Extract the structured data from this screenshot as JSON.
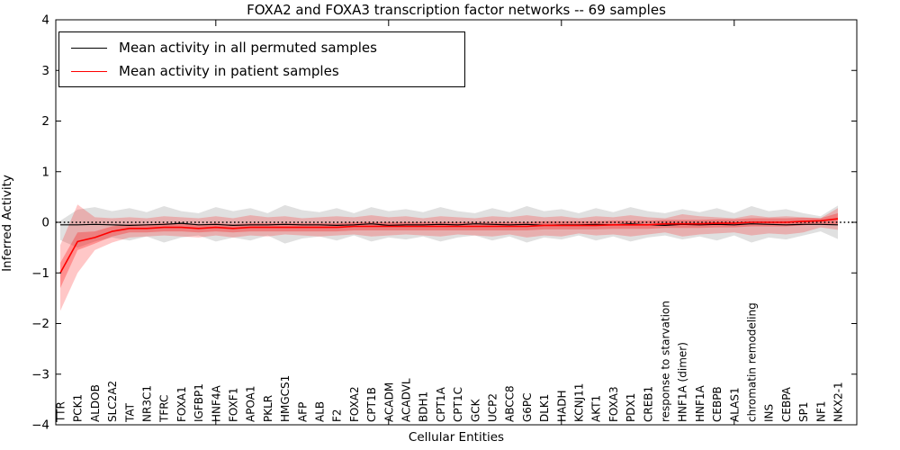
{
  "figure": {
    "title": "FOXA2 and FOXA3 transcription factor networks -- 69 samples",
    "xlabel": "Cellular Entities",
    "ylabel": "Inferred Activity"
  },
  "legend": {
    "items": [
      {
        "label": "Mean activity in all permuted samples",
        "color": "#000000"
      },
      {
        "label": "Mean activity in patient samples",
        "color": "#ff0000"
      }
    ]
  },
  "chart_data": {
    "type": "line",
    "title": "FOXA2 and FOXA3 transcription factor networks -- 69 samples",
    "xlabel": "Cellular Entities",
    "ylabel": "Inferred Activity",
    "ylim": [
      -4,
      4
    ],
    "yticks": [
      4,
      3,
      2,
      1,
      0,
      -1,
      -2,
      -3,
      -4
    ],
    "grid": false,
    "legend_position": "upper left",
    "zero_line": {
      "style": "dotted",
      "color": "#000000",
      "y": 0
    },
    "xtick_marks_top_indices": [
      9,
      19,
      29,
      39
    ],
    "categories": [
      "TTR",
      "PCK1",
      "ALDOB",
      "SLC2A2",
      "TAT",
      "NR3C1",
      "TFRC",
      "FOXA1",
      "IGFBP1",
      "HNF4A",
      "FOXF1",
      "APOA1",
      "PKLR",
      "HMGCS1",
      "AFP",
      "ALB",
      "F2",
      "FOXA2",
      "CPT1B",
      "ACADM",
      "ACADVL",
      "BDH1",
      "CPT1A",
      "CPT1C",
      "GCK",
      "UCP2",
      "ABCC8",
      "G6PC",
      "DLK1",
      "HADH",
      "KCNJ11",
      "AKT1",
      "FOXA3",
      "PDX1",
      "CREB1",
      "response to starvation",
      "HNF1A (dimer)",
      "HNF1A",
      "CEBPB",
      "ALAS1",
      "chromatin remodeling",
      "INS",
      "CEBPA",
      "SP1",
      "NF1",
      "NKX2-1"
    ],
    "series": [
      {
        "name": "Mean activity in all permuted samples",
        "color": "#000000",
        "width": 1.2,
        "values": [
          -0.05,
          -0.05,
          -0.04,
          -0.05,
          -0.06,
          -0.05,
          -0.04,
          -0.02,
          -0.05,
          -0.04,
          -0.06,
          -0.05,
          -0.05,
          -0.04,
          -0.05,
          -0.05,
          -0.06,
          -0.05,
          -0.03,
          -0.06,
          -0.05,
          -0.05,
          -0.04,
          -0.05,
          -0.03,
          -0.04,
          -0.05,
          -0.04,
          -0.06,
          -0.05,
          -0.05,
          -0.04,
          -0.05,
          -0.03,
          -0.05,
          -0.06,
          -0.04,
          -0.05,
          -0.04,
          -0.05,
          -0.03,
          -0.04,
          -0.05,
          -0.04,
          -0.04,
          -0.05
        ]
      },
      {
        "name": "Mean activity in patient samples",
        "color": "#ff0000",
        "width": 1.6,
        "values": [
          -1.0,
          -0.38,
          -0.3,
          -0.18,
          -0.12,
          -0.12,
          -0.1,
          -0.1,
          -0.12,
          -0.1,
          -0.12,
          -0.1,
          -0.1,
          -0.1,
          -0.1,
          -0.1,
          -0.1,
          -0.08,
          -0.08,
          -0.08,
          -0.08,
          -0.08,
          -0.08,
          -0.08,
          -0.08,
          -0.08,
          -0.08,
          -0.08,
          -0.06,
          -0.06,
          -0.06,
          -0.06,
          -0.05,
          -0.05,
          -0.05,
          -0.03,
          -0.03,
          -0.03,
          -0.02,
          -0.02,
          0.0,
          0.0,
          0.0,
          0.02,
          0.03,
          0.07
        ]
      }
    ],
    "bands": [
      {
        "name": "permuted-samples-range",
        "color": "#000000",
        "opacity": 0.12,
        "upper": [
          0.03,
          0.25,
          0.3,
          0.22,
          0.28,
          0.2,
          0.32,
          0.22,
          0.18,
          0.3,
          0.22,
          0.28,
          0.18,
          0.34,
          0.24,
          0.2,
          0.28,
          0.18,
          0.3,
          0.22,
          0.26,
          0.2,
          0.3,
          0.22,
          0.18,
          0.28,
          0.2,
          0.32,
          0.22,
          0.26,
          0.18,
          0.28,
          0.2,
          0.3,
          0.22,
          0.18,
          0.26,
          0.2,
          0.28,
          0.18,
          0.32,
          0.22,
          0.26,
          0.18,
          0.12,
          0.33
        ],
        "lower": [
          -0.35,
          -0.5,
          -0.38,
          -0.3,
          -0.36,
          -0.28,
          -0.4,
          -0.3,
          -0.26,
          -0.38,
          -0.3,
          -0.36,
          -0.26,
          -0.42,
          -0.32,
          -0.28,
          -0.36,
          -0.26,
          -0.38,
          -0.3,
          -0.34,
          -0.28,
          -0.38,
          -0.3,
          -0.26,
          -0.36,
          -0.28,
          -0.4,
          -0.3,
          -0.34,
          -0.26,
          -0.36,
          -0.28,
          -0.38,
          -0.3,
          -0.26,
          -0.34,
          -0.28,
          -0.36,
          -0.26,
          -0.4,
          -0.3,
          -0.34,
          -0.26,
          -0.18,
          -0.33
        ]
      },
      {
        "name": "patient-samples-range-outer",
        "color": "#ff0000",
        "opacity": 0.22,
        "upper": [
          -0.45,
          0.35,
          0.1,
          0.08,
          0.1,
          0.08,
          0.12,
          0.1,
          0.08,
          0.12,
          0.08,
          0.14,
          0.1,
          0.12,
          0.08,
          0.1,
          0.12,
          0.1,
          0.14,
          0.1,
          0.12,
          0.08,
          0.12,
          0.1,
          0.08,
          0.12,
          0.1,
          0.14,
          0.1,
          0.12,
          0.08,
          0.12,
          0.1,
          0.14,
          0.1,
          0.08,
          0.16,
          0.12,
          0.1,
          0.08,
          0.14,
          0.1,
          0.12,
          0.1,
          0.08,
          0.28
        ],
        "lower": [
          -1.75,
          -1.0,
          -0.55,
          -0.4,
          -0.3,
          -0.28,
          -0.26,
          -0.28,
          -0.3,
          -0.26,
          -0.3,
          -0.26,
          -0.28,
          -0.24,
          -0.26,
          -0.28,
          -0.26,
          -0.24,
          -0.28,
          -0.26,
          -0.24,
          -0.26,
          -0.28,
          -0.24,
          -0.26,
          -0.28,
          -0.24,
          -0.3,
          -0.26,
          -0.28,
          -0.22,
          -0.26,
          -0.24,
          -0.28,
          -0.24,
          -0.2,
          -0.28,
          -0.24,
          -0.22,
          -0.2,
          -0.26,
          -0.22,
          -0.24,
          -0.2,
          -0.1,
          -0.15
        ]
      },
      {
        "name": "patient-samples-range-inner",
        "color": "#ff0000",
        "opacity": 0.28,
        "upper": [
          -0.8,
          -0.2,
          -0.18,
          -0.08,
          -0.04,
          -0.04,
          -0.02,
          -0.02,
          -0.04,
          -0.02,
          -0.04,
          -0.02,
          -0.02,
          -0.02,
          -0.02,
          -0.02,
          -0.02,
          0.0,
          0.0,
          0.0,
          0.0,
          0.0,
          0.0,
          0.0,
          0.0,
          0.0,
          0.0,
          0.0,
          0.02,
          0.02,
          0.02,
          0.02,
          0.03,
          0.03,
          0.03,
          0.05,
          0.05,
          0.05,
          0.06,
          0.06,
          0.08,
          0.08,
          0.08,
          0.09,
          0.08,
          0.18
        ],
        "lower": [
          -1.3,
          -0.55,
          -0.42,
          -0.28,
          -0.2,
          -0.2,
          -0.18,
          -0.18,
          -0.2,
          -0.18,
          -0.2,
          -0.18,
          -0.18,
          -0.18,
          -0.18,
          -0.18,
          -0.18,
          -0.16,
          -0.16,
          -0.16,
          -0.16,
          -0.16,
          -0.16,
          -0.16,
          -0.16,
          -0.16,
          -0.16,
          -0.16,
          -0.14,
          -0.14,
          -0.14,
          -0.14,
          -0.13,
          -0.13,
          -0.13,
          -0.11,
          -0.11,
          -0.11,
          -0.1,
          -0.1,
          -0.08,
          -0.08,
          -0.08,
          -0.06,
          -0.03,
          -0.05
        ]
      }
    ]
  }
}
